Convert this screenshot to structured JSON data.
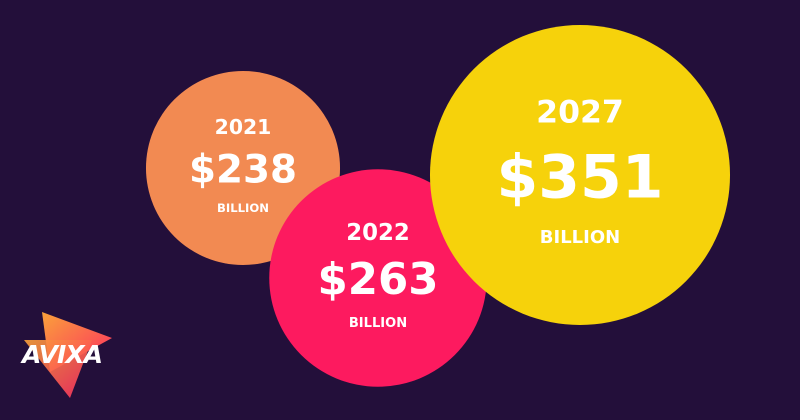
{
  "chart_data": {
    "type": "bubble",
    "categories": [
      "2021",
      "2022",
      "2027"
    ],
    "values": [
      238,
      263,
      351
    ],
    "value_labels": [
      "$238",
      "$263",
      "$351"
    ],
    "unit": "BILLION",
    "colors": [
      "#f28a52",
      "#fd1a5f",
      "#f6d20b"
    ]
  },
  "logo": "AVIXA"
}
